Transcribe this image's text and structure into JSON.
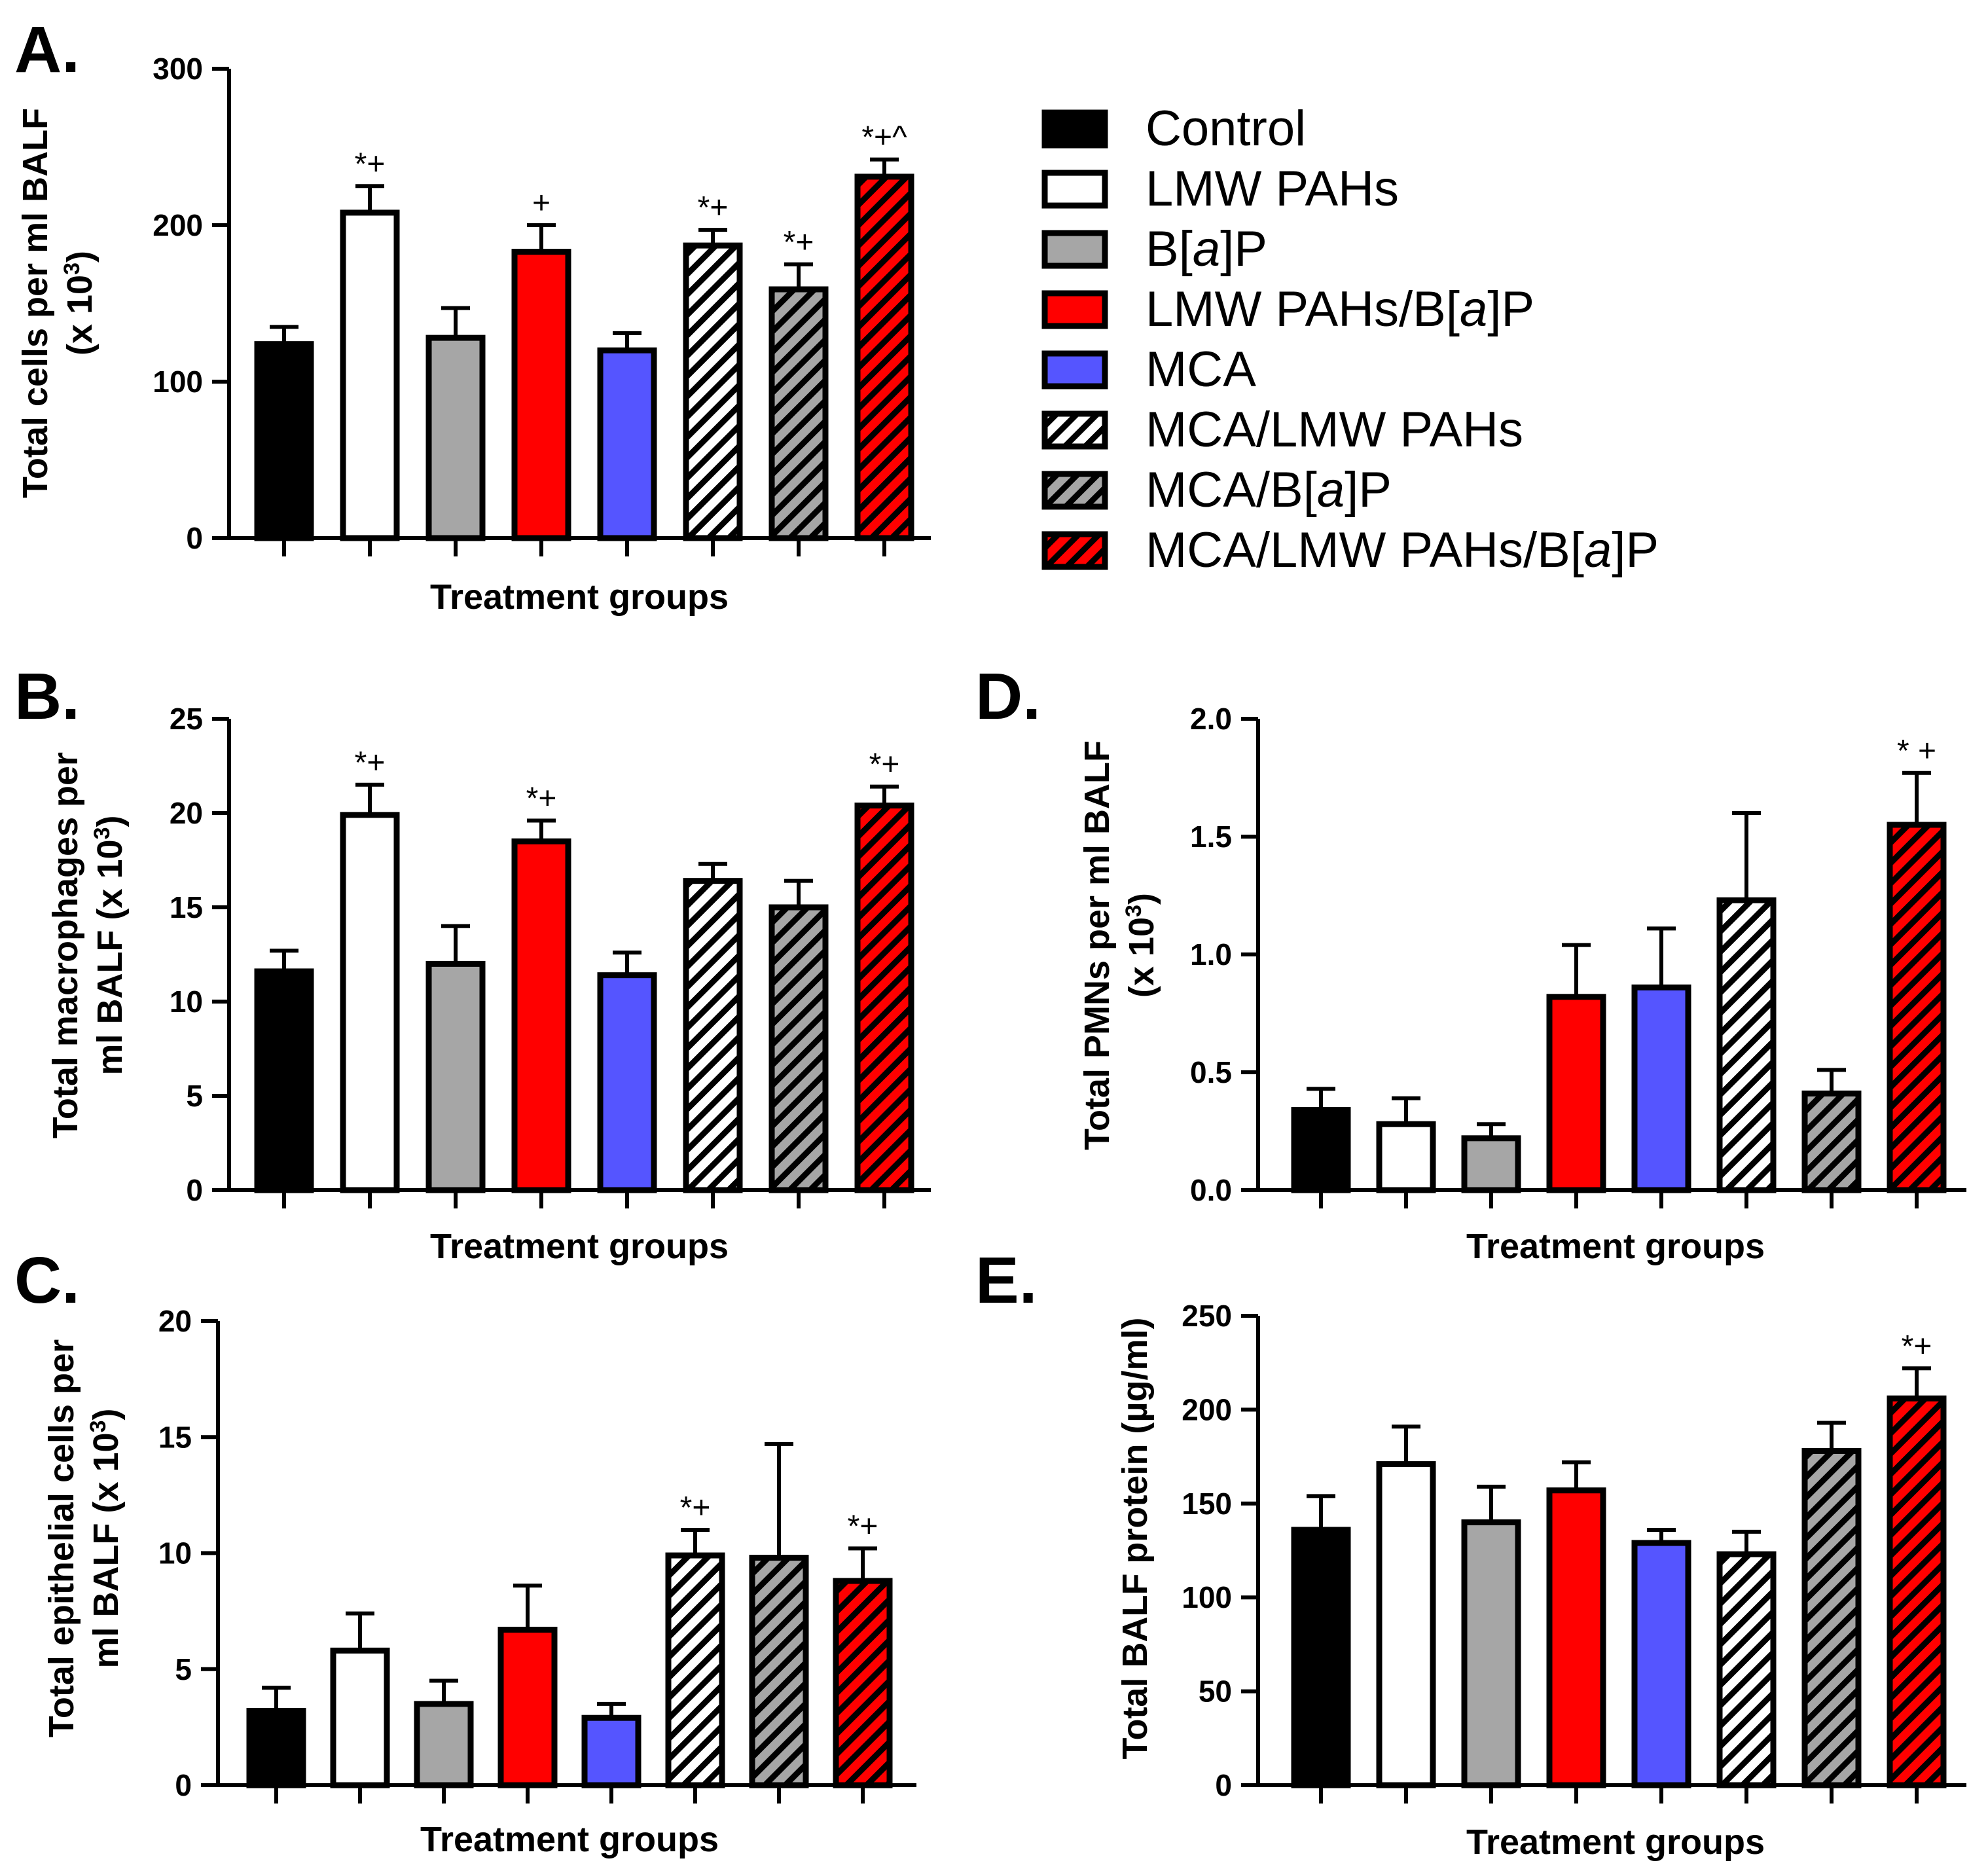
{
  "colors": {
    "Control": "#000000",
    "LMW PAHs": "#ffffff",
    "B[a]P": "#a6a6a6",
    "LMW PAHs/B[a]P": "#ff0000",
    "MCA": "#5555ff",
    "MCA/LMW PAHs": "hatch-white",
    "MCA/B[a]P": "hatch-gray",
    "MCA/LMW PAHs/B[a]P": "hatch-red"
  },
  "legend": [
    {
      "prefix": "Control",
      "italic": "",
      "suffix": "",
      "color": "#000000",
      "hatch": ""
    },
    {
      "prefix": "LMW PAHs",
      "italic": "",
      "suffix": "",
      "color": "#ffffff",
      "hatch": ""
    },
    {
      "prefix": "B[",
      "italic": "a",
      "suffix": "]P",
      "color": "#a6a6a6",
      "hatch": ""
    },
    {
      "prefix": "LMW PAHs/B[",
      "italic": "a",
      "suffix": "]P",
      "color": "#ff0000",
      "hatch": ""
    },
    {
      "prefix": "MCA",
      "italic": "",
      "suffix": "",
      "color": "#5555ff",
      "hatch": ""
    },
    {
      "prefix": "MCA/LMW PAHs",
      "italic": "",
      "suffix": "",
      "color": "#ffffff",
      "hatch": "white"
    },
    {
      "prefix": "MCA/B[",
      "italic": "a",
      "suffix": "]P",
      "color": "#808080",
      "hatch": "gray"
    },
    {
      "prefix": "MCA/LMW PAHs/B[",
      "italic": "a",
      "suffix": "]P",
      "color": "#ff0000",
      "hatch": "red"
    }
  ],
  "chart_data": [
    {
      "panel": "A.",
      "type": "bar",
      "title": "",
      "xlabel": "Treatment groups",
      "ylabel_lines": [
        "Total cells per ml BALF",
        "(x 10",
        "3",
        ")"
      ],
      "ylim": [
        0,
        300
      ],
      "yticks": [
        0,
        100,
        200,
        300
      ],
      "yticklabels": [
        "0",
        "100",
        "200",
        "300"
      ],
      "categories": [
        "Control",
        "LMW PAHs",
        "B[a]P",
        "LMW PAHs/B[a]P",
        "MCA",
        "MCA/LMW PAHs",
        "MCA/B[a]P",
        "MCA/LMW PAHs/B[a]P"
      ],
      "values": [
        124,
        208,
        128,
        183,
        120,
        187,
        159,
        231
      ],
      "errors": [
        11,
        17,
        19,
        17,
        11,
        10,
        16,
        11
      ],
      "annotations": [
        "",
        "*+",
        "",
        "+",
        "",
        "*+",
        "*+",
        "*+^"
      ]
    },
    {
      "panel": "B.",
      "type": "bar",
      "title": "",
      "xlabel": "Treatment groups",
      "ylabel_lines": [
        "Total macrophages per",
        "ml BALF (x 10",
        "3",
        ")"
      ],
      "ylim": [
        0,
        25
      ],
      "yticks": [
        0,
        5,
        10,
        15,
        20,
        25
      ],
      "yticklabels": [
        "0",
        "5",
        "10",
        "15",
        "20",
        "25"
      ],
      "categories": [
        "Control",
        "LMW PAHs",
        "B[a]P",
        "LMW PAHs/B[a]P",
        "MCA",
        "MCA/LMW PAHs",
        "MCA/B[a]P",
        "MCA/LMW PAHs/B[a]P"
      ],
      "values": [
        11.6,
        19.9,
        12.0,
        18.5,
        11.4,
        16.4,
        15.0,
        20.4
      ],
      "errors": [
        1.1,
        1.6,
        2.0,
        1.1,
        1.2,
        0.9,
        1.4,
        1.0
      ],
      "annotations": [
        "",
        "*+",
        "",
        "*+",
        "",
        "",
        "",
        "*+"
      ]
    },
    {
      "panel": "C.",
      "type": "bar",
      "title": "",
      "xlabel": "Treatment groups",
      "ylabel_lines": [
        "Total epithelial cells per",
        "ml BALF (x 10",
        "3",
        ")"
      ],
      "ylim": [
        0,
        20
      ],
      "yticks": [
        0,
        5,
        10,
        15,
        20
      ],
      "yticklabels": [
        "0",
        "5",
        "10",
        "15",
        "20"
      ],
      "categories": [
        "Control",
        "LMW PAHs",
        "B[a]P",
        "LMW PAHs/B[a]P",
        "MCA",
        "MCA/LMW PAHs",
        "MCA/B[a]P",
        "MCA/LMW PAHs/B[a]P"
      ],
      "values": [
        3.2,
        5.8,
        3.5,
        6.7,
        2.9,
        9.9,
        9.8,
        8.8
      ],
      "errors": [
        1.0,
        1.6,
        1.0,
        1.9,
        0.6,
        1.1,
        4.9,
        1.4
      ],
      "annotations": [
        "",
        "",
        "",
        "",
        "",
        "*+",
        "",
        "*+"
      ]
    },
    {
      "panel": "D.",
      "type": "bar",
      "title": "",
      "xlabel": "Treatment groups",
      "ylabel_lines": [
        "Total PMNs per ml BALF",
        "(x 10",
        "3",
        ")"
      ],
      "ylim": [
        0,
        2.0
      ],
      "yticks": [
        0,
        0.5,
        1.0,
        1.5,
        2.0
      ],
      "yticklabels": [
        "0.0",
        "0.5",
        "1.0",
        "1.5",
        "2.0"
      ],
      "categories": [
        "Control",
        "LMW PAHs",
        "B[a]P",
        "LMW PAHs/B[a]P",
        "MCA",
        "MCA/LMW PAHs",
        "MCA/B[a]P",
        "MCA/LMW PAHs/B[a]P"
      ],
      "values": [
        0.34,
        0.28,
        0.22,
        0.82,
        0.86,
        1.23,
        0.41,
        1.55
      ],
      "errors": [
        0.09,
        0.11,
        0.06,
        0.22,
        0.25,
        0.37,
        0.1,
        0.22
      ],
      "annotations": [
        "",
        "",
        "",
        "",
        "",
        "",
        "",
        "* +"
      ]
    },
    {
      "panel": "E.",
      "type": "bar",
      "title": "",
      "xlabel": "Treatment groups",
      "ylabel_lines": [
        "Total BALF protein (µg/ml)"
      ],
      "ylim": [
        0,
        250
      ],
      "yticks": [
        0,
        50,
        100,
        150,
        200,
        250
      ],
      "yticklabels": [
        "0",
        "50",
        "100",
        "150",
        "200",
        "250"
      ],
      "categories": [
        "Control",
        "LMW PAHs",
        "B[a]P",
        "LMW PAHs/B[a]P",
        "MCA",
        "MCA/LMW PAHs",
        "MCA/B[a]P",
        "MCA/LMW PAHs/B[a]P"
      ],
      "values": [
        136,
        171,
        140,
        157,
        129,
        123,
        178,
        206
      ],
      "errors": [
        18,
        20,
        19,
        15,
        7,
        12,
        15,
        16
      ],
      "annotations": [
        "",
        "",
        "",
        "",
        "",
        "",
        "",
        "*+"
      ]
    }
  ]
}
